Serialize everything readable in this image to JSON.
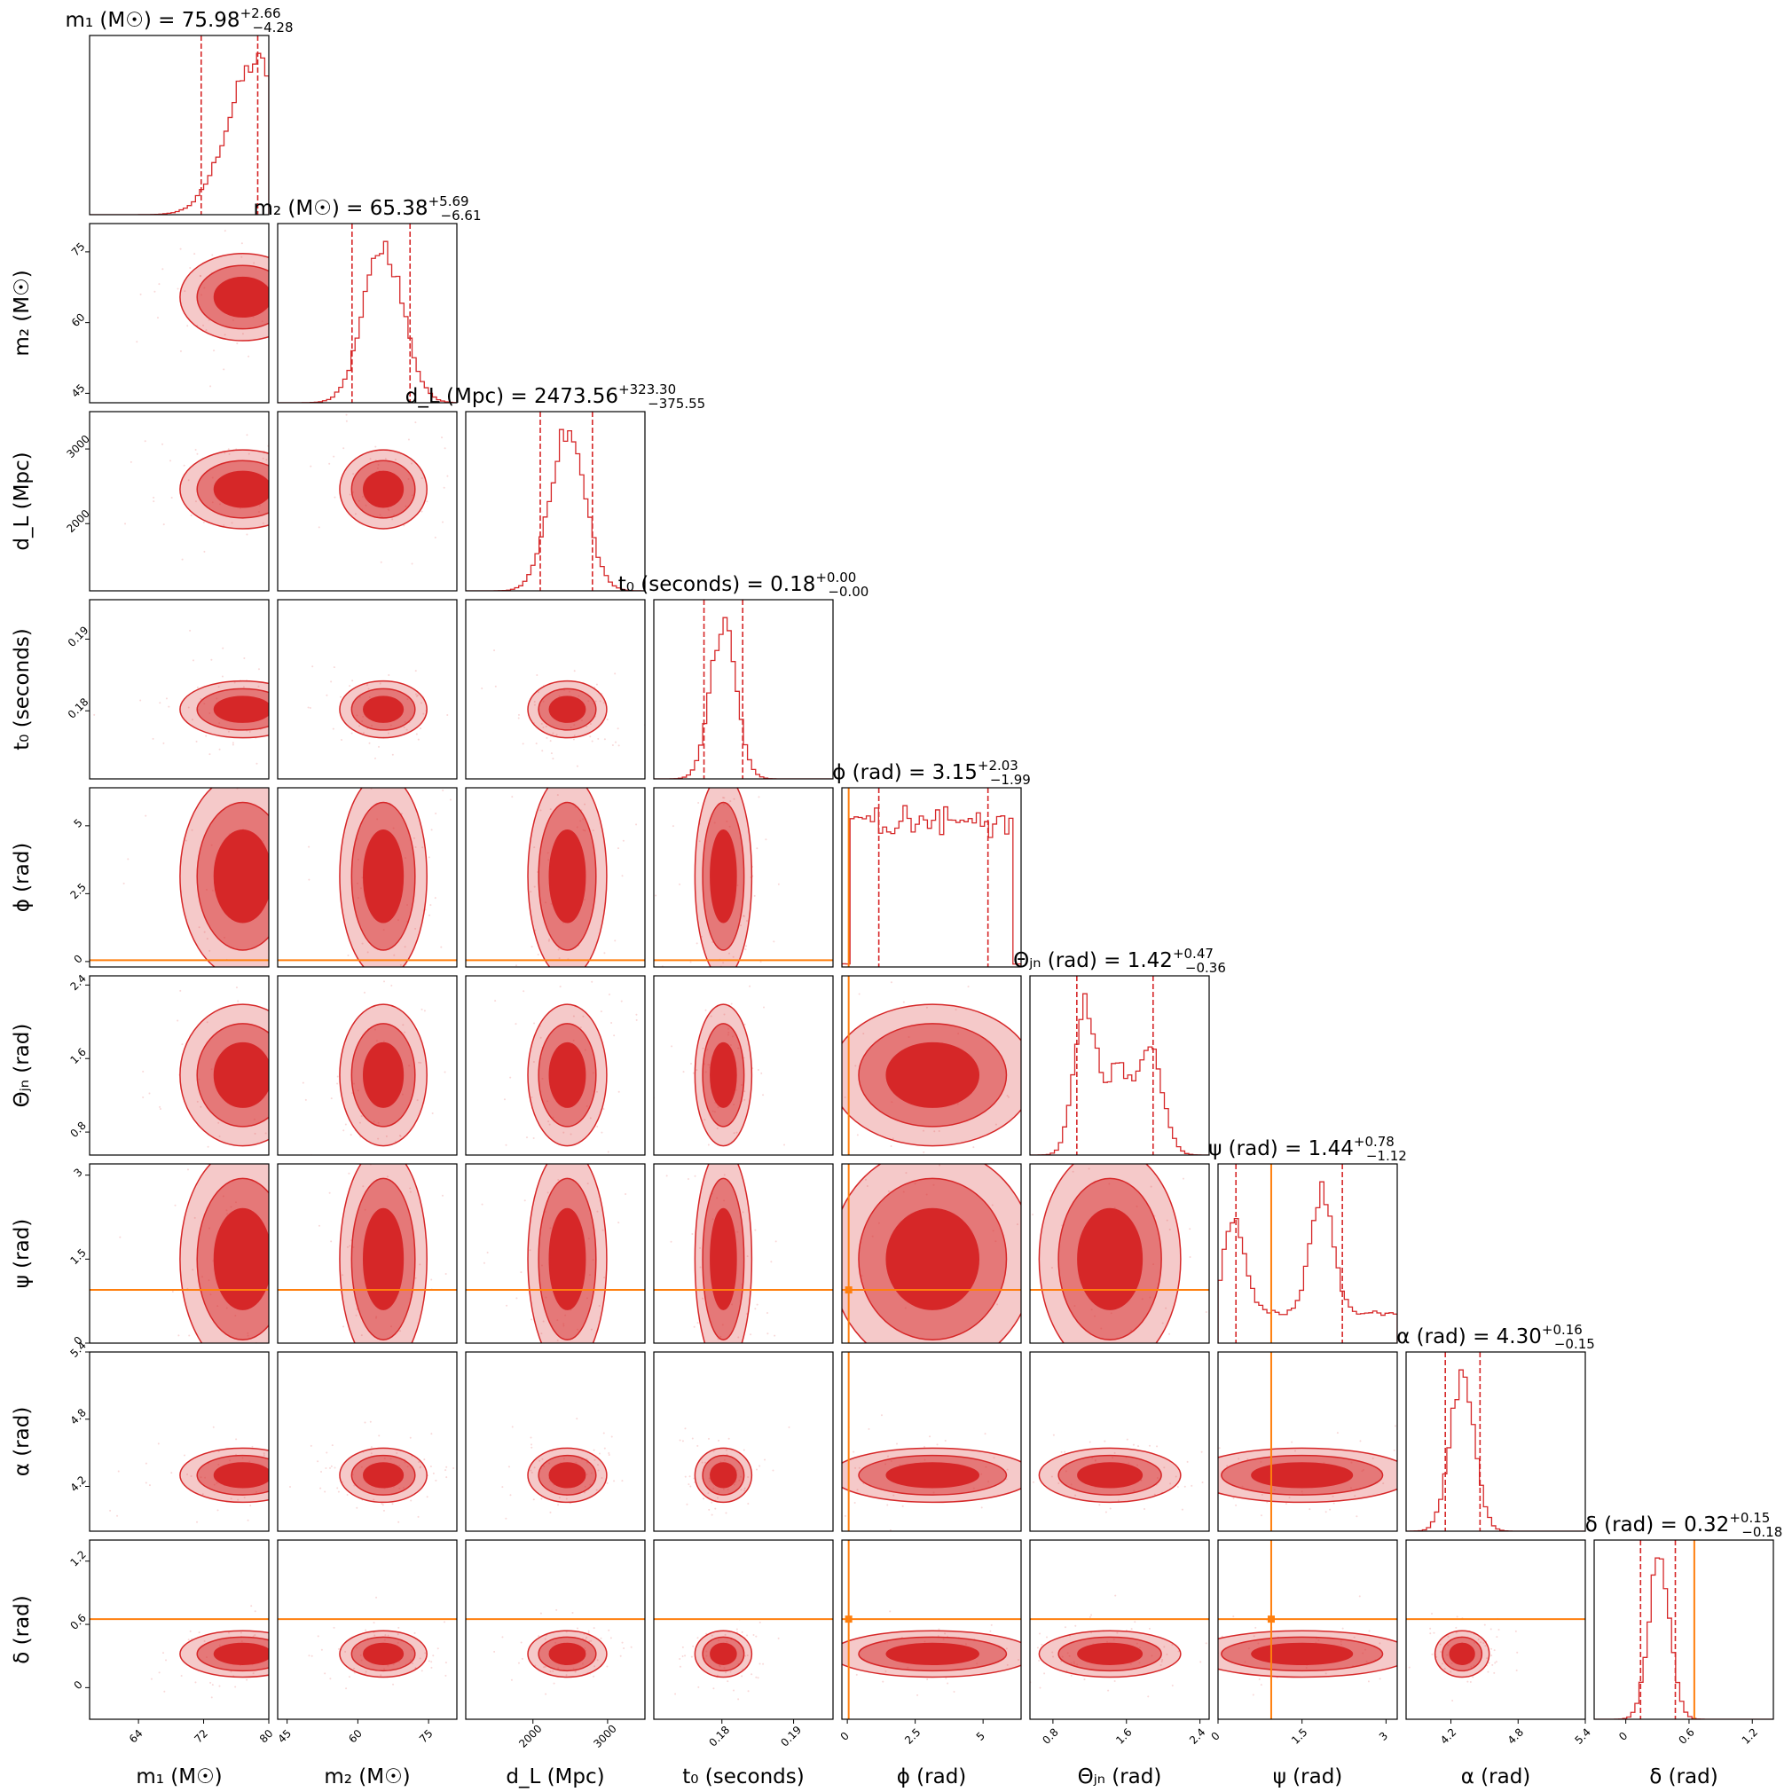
{
  "chart_data": {
    "type": "corner",
    "color": "#d62728",
    "injection_color": "#ff7f0e",
    "parameters": [
      {
        "key": "m1",
        "label": "m₁ (M☉)",
        "title_prefix": "m₁ (M☉) = ",
        "median": "75.98",
        "plus": "+2.66",
        "minus": "−4.28",
        "range": [
          58,
          80
        ],
        "ticks": [
          64,
          72,
          80
        ],
        "ci": [
          71.7,
          78.64
        ],
        "center": 76.8,
        "spread": 3.5,
        "injection": null
      },
      {
        "key": "m2",
        "label": "m₂ (M☉)",
        "title_prefix": "m₂ (M☉) = ",
        "median": "65.38",
        "plus": "+5.69",
        "minus": "−6.61",
        "range": [
          43,
          81
        ],
        "ticks": [
          45,
          60,
          75
        ],
        "ci": [
          58.77,
          71.07
        ],
        "center": 65.4,
        "spread": 4.2,
        "injection": null
      },
      {
        "key": "dL",
        "label": "d_L (Mpc)",
        "title_prefix": "d_L (Mpc) = ",
        "median": "2473.56",
        "plus": "+323.30",
        "minus": "−375.55",
        "range": [
          1100,
          3500
        ],
        "ticks": [
          2000,
          3000
        ],
        "ci": [
          2098.01,
          2796.86
        ],
        "center": 2460,
        "spread": 240,
        "injection": null
      },
      {
        "key": "t0",
        "label": "t₀ (seconds)",
        "title_prefix": "t₀ (seconds) = ",
        "median": "0.18",
        "plus": "+0.00",
        "minus": "−0.00",
        "range": [
          0.1705,
          0.1955
        ],
        "ticks": [
          0.18,
          0.19
        ],
        "ci": [
          0.1775,
          0.1829
        ],
        "center": 0.1802,
        "spread": 0.0018,
        "injection": null
      },
      {
        "key": "phi",
        "label": "ϕ (rad)",
        "title_prefix": "ϕ (rad) = ",
        "median": "3.15",
        "plus": "+2.03",
        "minus": "−1.99",
        "range": [
          -0.2,
          6.4
        ],
        "ticks": [
          0.0,
          2.5,
          5.0
        ],
        "ci": [
          1.16,
          5.18
        ],
        "center": 3.14,
        "spread": 1.7,
        "injection": 0.05
      },
      {
        "key": "theta",
        "label": "Θⱼₙ (rad)",
        "title_prefix": "Θⱼₙ (rad) = ",
        "median": "1.42",
        "plus": "+0.47",
        "minus": "−0.36",
        "range": [
          0.55,
          2.5
        ],
        "ticks": [
          0.8,
          1.6,
          2.4
        ],
        "ci": [
          1.06,
          1.89
        ],
        "center": 1.42,
        "spread": 0.35,
        "injection": null
      },
      {
        "key": "psi",
        "label": "ψ (rad)",
        "title_prefix": "ψ (rad) = ",
        "median": "1.44",
        "plus": "+0.78",
        "minus": "−1.12",
        "range": [
          0.0,
          3.2
        ],
        "ticks": [
          0.0,
          1.5,
          3.0
        ],
        "ci": [
          0.32,
          2.22
        ],
        "center": 1.5,
        "spread": 0.9,
        "injection": 0.95
      },
      {
        "key": "alpha",
        "label": "α (rad)",
        "title_prefix": "α (rad) = ",
        "median": "4.30",
        "plus": "+0.16",
        "minus": "−0.15",
        "range": [
          3.8,
          5.4
        ],
        "ticks": [
          4.2,
          4.8,
          5.4
        ],
        "ci": [
          4.15,
          4.46
        ],
        "center": 4.3,
        "spread": 0.11,
        "injection": null
      },
      {
        "key": "delta",
        "label": "δ (rad)",
        "title_prefix": "δ (rad) = ",
        "median": "0.32",
        "plus": "+0.15",
        "minus": "−0.18",
        "range": [
          -0.3,
          1.4
        ],
        "ticks": [
          0.0,
          0.6,
          1.2
        ],
        "ci": [
          0.14,
          0.47
        ],
        "center": 0.32,
        "spread": 0.1,
        "injection": 0.65
      }
    ]
  }
}
